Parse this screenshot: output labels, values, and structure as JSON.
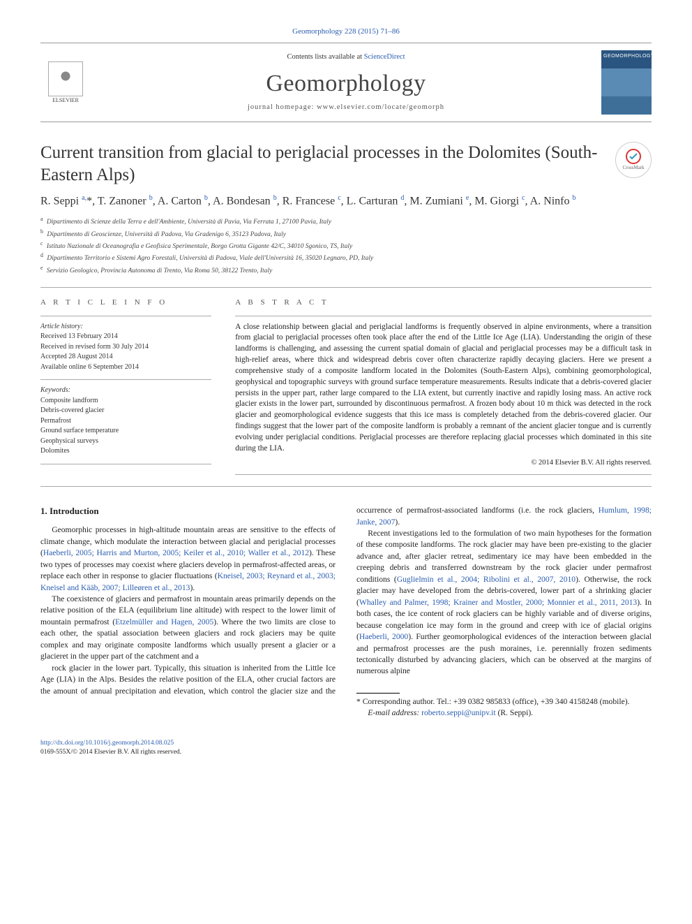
{
  "journal_ref_link": "Geomorphology 228 (2015) 71–86",
  "header": {
    "contents_prefix": "Contents lists available at ",
    "contents_link": "ScienceDirect",
    "journal_name": "Geomorphology",
    "homepage_label": "journal homepage: ",
    "homepage_url": "www.elsevier.com/locate/geomorph",
    "publisher": "ELSEVIER",
    "crossmark_label": "CrossMark"
  },
  "article": {
    "title": "Current transition from glacial to periglacial processes in the Dolomites (South-Eastern Alps)",
    "authors_html": "R. Seppi <sup>a,</sup>*, T. Zanoner <sup>b</sup>, A. Carton <sup>b</sup>, A. Bondesan <sup>b</sup>, R. Francese <sup>c</sup>, L. Carturan <sup>d</sup>, M. Zumiani <sup>e</sup>, M. Giorgi <sup>c</sup>, A. Ninfo <sup>b</sup>",
    "affiliations": [
      {
        "sup": "a",
        "text": "Dipartimento di Scienze della Terra e dell'Ambiente, Università di Pavia, Via Ferrata 1, 27100 Pavia, Italy"
      },
      {
        "sup": "b",
        "text": "Dipartimento di Geoscienze, Università di Padova, Via Gradenigo 6, 35123 Padova, Italy"
      },
      {
        "sup": "c",
        "text": "Istituto Nazionale di Oceanografia e Geofisica Sperimentale, Borgo Grotta Gigante 42/C, 34010 Sgonico, TS, Italy"
      },
      {
        "sup": "d",
        "text": "Dipartimento Territorio e Sistemi Agro Forestali, Università di Padova, Viale dell'Università 16, 35020 Legnaro, PD, Italy"
      },
      {
        "sup": "e",
        "text": "Servizio Geologico, Provincia Autonoma di Trento, Via Roma 50, 38122 Trento, Italy"
      }
    ]
  },
  "info": {
    "section_label": "A R T I C L E   I N F O",
    "history_label": "Article history:",
    "history": [
      "Received 13 February 2014",
      "Received in revised form 30 July 2014",
      "Accepted 28 August 2014",
      "Available online 6 September 2014"
    ],
    "keywords_label": "Keywords:",
    "keywords": [
      "Composite landform",
      "Debris-covered glacier",
      "Permafrost",
      "Ground surface temperature",
      "Geophysical surveys",
      "Dolomites"
    ]
  },
  "abstract": {
    "section_label": "A B S T R A C T",
    "text": "A close relationship between glacial and periglacial landforms is frequently observed in alpine environments, where a transition from glacial to periglacial processes often took place after the end of the Little Ice Age (LIA). Understanding the origin of these landforms is challenging, and assessing the current spatial domain of glacial and periglacial processes may be a difficult task in high-relief areas, where thick and widespread debris cover often characterize rapidly decaying glaciers. Here we present a comprehensive study of a composite landform located in the Dolomites (South-Eastern Alps), combining geomorphological, geophysical and topographic surveys with ground surface temperature measurements. Results indicate that a debris-covered glacier persists in the upper part, rather large compared to the LIA extent, but currently inactive and rapidly losing mass. An active rock glacier exists in the lower part, surrounded by discontinuous permafrost. A frozen body about 10 m thick was detected in the rock glacier and geomorphological evidence suggests that this ice mass is completely detached from the debris-covered glacier. Our findings suggest that the lower part of the composite landform is probably a remnant of the ancient glacier tongue and is currently evolving under periglacial conditions. Periglacial processes are therefore replacing glacial processes which dominated in this site during the LIA.",
    "copyright": "© 2014 Elsevier B.V. All rights reserved."
  },
  "body": {
    "intro_heading": "1. Introduction",
    "paragraphs": [
      "Geomorphic processes in high-altitude mountain areas are sensitive to the effects of climate change, which modulate the interaction between glacial and periglacial processes (<a>Haeberli, 2005; Harris and Murton, 2005; Keiler et al., 2010; Waller et al., 2012</a>). These two types of processes may coexist where glaciers develop in permafrost-affected areas, or replace each other in response to glacier fluctuations (<a>Kneisel, 2003; Reynard et al., 2003; Kneisel and Kääb, 2007; Lilleøren et al., 2013</a>).",
      "The coexistence of glaciers and permafrost in mountain areas primarily depends on the relative position of the ELA (equilibrium line altitude) with respect to the lower limit of mountain permafrost (<a>Etzelmüller and Hagen, 2005</a>). Where the two limits are close to each other, the spatial association between glaciers and rock glaciers may be quite complex and may originate composite landforms which usually present a glacier or a glacieret in the upper part of the catchment and a",
      "rock glacier in the lower part. Typically, this situation is inherited from the Little Ice Age (LIA) in the Alps. Besides the relative position of the ELA, other crucial factors are the amount of annual precipitation and elevation, which control the glacier size and the occurrence of permafrost-associated landforms (i.e. the rock glaciers, <a>Humlum, 1998; Janke, 2007</a>).",
      "Recent investigations led to the formulation of two main hypotheses for the formation of these composite landforms. The rock glacier may have been pre-existing to the glacier advance and, after glacier retreat, sedimentary ice may have been embedded in the creeping debris and transferred downstream by the rock glacier under permafrost conditions (<a>Guglielmin et al., 2004; Ribolini et al., 2007, 2010</a>). Otherwise, the rock glacier may have developed from the debris-covered, lower part of a shrinking glacier (<a>Whalley and Palmer, 1998; Krainer and Mostler, 2000; Monnier et al., 2011, 2013</a>). In both cases, the ice content of rock glaciers can be highly variable and of diverse origins, because congelation ice may form in the ground and creep with ice of glacial origins (<a>Haeberli, 2000</a>). Further geomorphological evidences of the interaction between glacial and permafrost processes are the push moraines, i.e. perennially frozen sediments tectonically disturbed by advancing glaciers, which can be observed at the margins of numerous alpine"
    ]
  },
  "footnote": {
    "corr_label": "* Corresponding author. Tel.: +39 0382 985833 (office), +39 340 4158248 (mobile).",
    "email_label": "E-mail address: ",
    "email": "roberto.seppi@unipv.it",
    "email_author": " (R. Seppi)."
  },
  "footer": {
    "doi": "http://dx.doi.org/10.1016/j.geomorph.2014.08.025",
    "issn_line": "0169-555X/© 2014 Elsevier B.V. All rights reserved."
  },
  "colors": {
    "link": "#2a5db0",
    "text": "#222222",
    "rule": "#999999"
  }
}
